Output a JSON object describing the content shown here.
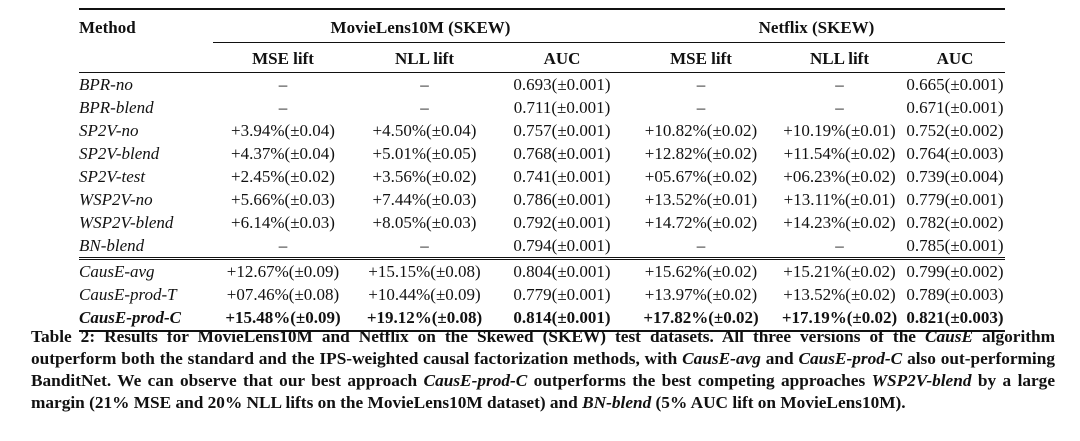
{
  "table": {
    "headers": {
      "method": "Method",
      "group1": "MovieLens10M (SKEW)",
      "group2": "Netflix (SKEW)",
      "mse_lift": "MSE lift",
      "nll_lift": "NLL lift",
      "auc": "AUC"
    },
    "rows": [
      {
        "method": "BPR-no",
        "ml_mse": "–",
        "ml_nll": "–",
        "ml_auc": "0.693(±0.001)",
        "nf_mse": "–",
        "nf_nll": "–",
        "nf_auc": "0.665(±0.001)"
      },
      {
        "method": "BPR-blend",
        "ml_mse": "–",
        "ml_nll": "–",
        "ml_auc": "0.711(±0.001)",
        "nf_mse": "–",
        "nf_nll": "–",
        "nf_auc": "0.671(±0.001)"
      },
      {
        "method": "SP2V-no",
        "ml_mse": "+3.94%(±0.04)",
        "ml_nll": "+4.50%(±0.04)",
        "ml_auc": "0.757(±0.001)",
        "nf_mse": "+10.82%(±0.02)",
        "nf_nll": "+10.19%(±0.01)",
        "nf_auc": "0.752(±0.002)"
      },
      {
        "method": "SP2V-blend",
        "ml_mse": "+4.37%(±0.04)",
        "ml_nll": "+5.01%(±0.05)",
        "ml_auc": "0.768(±0.001)",
        "nf_mse": "+12.82%(±0.02)",
        "nf_nll": "+11.54%(±0.02)",
        "nf_auc": "0.764(±0.003)"
      },
      {
        "method": "SP2V-test",
        "ml_mse": "+2.45%(±0.02)",
        "ml_nll": "+3.56%(±0.02)",
        "ml_auc": "0.741(±0.001)",
        "nf_mse": "+05.67%(±0.02)",
        "nf_nll": "+06.23%(±0.02)",
        "nf_auc": "0.739(±0.004)"
      },
      {
        "method": "WSP2V-no",
        "ml_mse": "+5.66%(±0.03)",
        "ml_nll": "+7.44%(±0.03)",
        "ml_auc": "0.786(±0.001)",
        "nf_mse": "+13.52%(±0.01)",
        "nf_nll": "+13.11%(±0.01)",
        "nf_auc": "0.779(±0.001)"
      },
      {
        "method": "WSP2V-blend",
        "ml_mse": "+6.14%(±0.03)",
        "ml_nll": "+8.05%(±0.03)",
        "ml_auc": "0.792(±0.001)",
        "nf_mse": "+14.72%(±0.02)",
        "nf_nll": "+14.23%(±0.02)",
        "nf_auc": "0.782(±0.002)"
      },
      {
        "method": "BN-blend",
        "ml_mse": "–",
        "ml_nll": "–",
        "ml_auc": "0.794(±0.001)",
        "nf_mse": "–",
        "nf_nll": "–",
        "nf_auc": "0.785(±0.001)"
      },
      {
        "method": "CausE-avg",
        "ml_mse": "+12.67%(±0.09)",
        "ml_nll": "+15.15%(±0.08)",
        "ml_auc": "0.804(±0.001)",
        "nf_mse": "+15.62%(±0.02)",
        "nf_nll": "+15.21%(±0.02)",
        "nf_auc": "0.799(±0.002)"
      },
      {
        "method": "CausE-prod-T",
        "ml_mse": "+07.46%(±0.08)",
        "ml_nll": "+10.44%(±0.09)",
        "ml_auc": "0.779(±0.001)",
        "nf_mse": "+13.97%(±0.02)",
        "nf_nll": "+13.52%(±0.02)",
        "nf_auc": "0.789(±0.003)"
      },
      {
        "method": "CausE-prod-C",
        "ml_mse": "+15.48%(±0.09)",
        "ml_nll": "+19.12%(±0.08)",
        "ml_auc": "0.814(±0.001)",
        "nf_mse": "+17.82%(±0.02)",
        "nf_nll": "+17.19%(±0.02)",
        "nf_auc": "0.821(±0.003)"
      }
    ]
  },
  "caption": {
    "p1": "Table 2: Results for MovieLens10M and Netflix on the Skewed (SKEW) test datasets. All three versions of the ",
    "i1": "CausE",
    "p2": " algorithm outperform both the standard and the IPS-weighted causal factorization methods, with ",
    "i2": "CausE-avg",
    "p3": " and ",
    "i3": "CausE-prod-C",
    "p4": " also out-performing BanditNet. We can observe that our best approach ",
    "i4": "CausE-prod-C",
    "p5": " outperforms the best competing approaches ",
    "i5": "WSP2V-blend",
    "p6": " by a large margin (21% MSE and 20% NLL lifts on the MovieLens10M dataset) and ",
    "i6": "BN-blend",
    "p7": " (5% AUC lift on MovieLens10M)."
  }
}
